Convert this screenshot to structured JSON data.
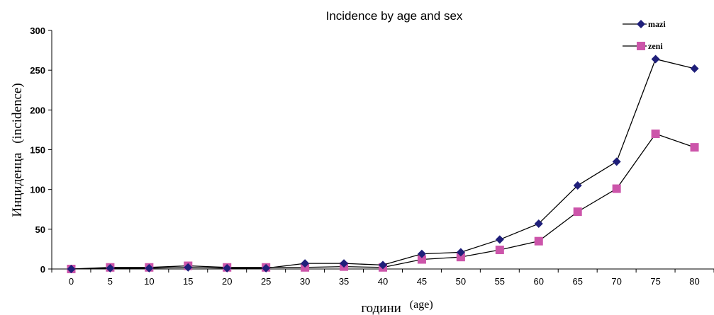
{
  "chart_data": {
    "type": "line",
    "title": "Incidence by age and sex",
    "ylabel_main": "Инциденца",
    "ylabel_sub": "(incidence)",
    "xlabel_main": "години",
    "xlabel_sub": "(age)",
    "x": [
      0,
      5,
      10,
      15,
      20,
      25,
      30,
      35,
      40,
      45,
      50,
      55,
      60,
      65,
      70,
      75,
      80
    ],
    "x_tick_labels": [
      "0",
      "5",
      "10",
      "15",
      "20",
      "25",
      "30",
      "35",
      "40",
      "45",
      "50",
      "55",
      "60",
      "65",
      "70",
      "75",
      "80"
    ],
    "ylim": [
      0,
      300
    ],
    "y_ticks": [
      0,
      50,
      100,
      150,
      200,
      250,
      300
    ],
    "y_tick_labels": [
      "0",
      "50",
      "100",
      "150",
      "200",
      "250",
      "300"
    ],
    "grid": false,
    "legend_position": "top-right",
    "series": [
      {
        "name": "mazi",
        "color": "#1f1f7a",
        "marker": "diamond",
        "values": [
          0,
          1,
          1,
          2,
          1,
          1,
          7,
          7,
          5,
          19,
          21,
          37,
          57,
          105,
          135,
          264,
          252
        ]
      },
      {
        "name": "zeni",
        "color": "#cc55aa",
        "marker": "square",
        "values": [
          0,
          2,
          2,
          4,
          2,
          2,
          2,
          3,
          2,
          12,
          15,
          24,
          35,
          72,
          101,
          170,
          153
        ]
      }
    ]
  }
}
